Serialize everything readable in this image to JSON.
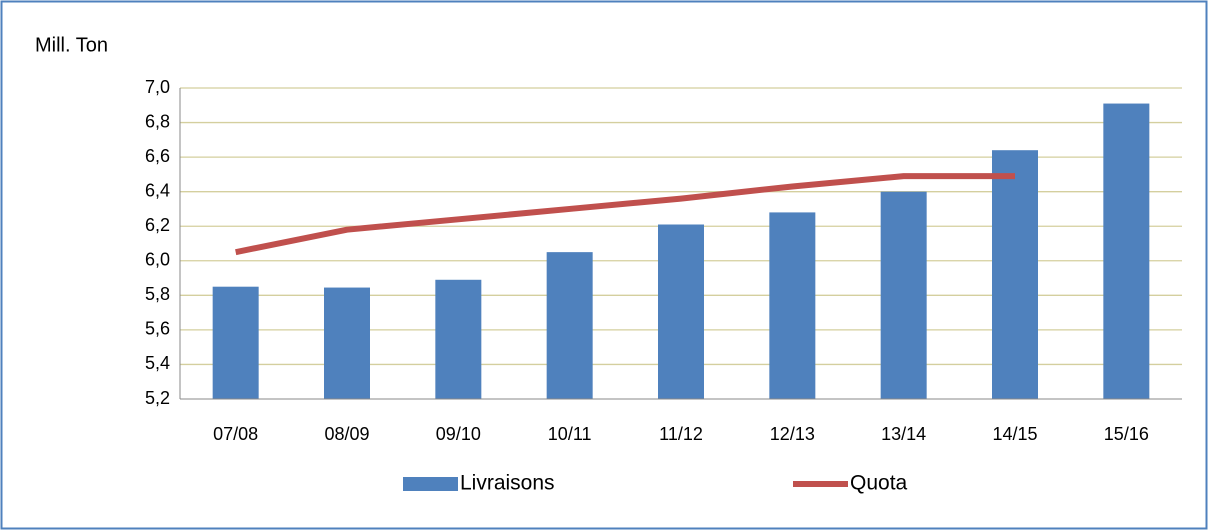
{
  "chart_data": {
    "type": "bar",
    "y_label": "Mill. Ton",
    "categories": [
      "07/08",
      "08/09",
      "09/10",
      "10/11",
      "11/12",
      "12/13",
      "13/14",
      "14/15",
      "15/16"
    ],
    "series": [
      {
        "name": "Livraisons",
        "type": "bar",
        "color": "#4f81bd",
        "values": [
          5.85,
          5.845,
          5.89,
          6.05,
          6.21,
          6.28,
          6.4,
          6.64,
          6.91
        ]
      },
      {
        "name": "Quota",
        "type": "line",
        "color": "#c0504d",
        "values": [
          6.05,
          6.18,
          6.24,
          6.3,
          6.36,
          6.43,
          6.49,
          6.49,
          null
        ]
      }
    ],
    "ylim": [
      5.2,
      7.0
    ],
    "yticks": [
      {
        "value": 5.2,
        "label": "5,2"
      },
      {
        "value": 5.4,
        "label": "5,4"
      },
      {
        "value": 5.6,
        "label": "5,6"
      },
      {
        "value": 5.8,
        "label": "5,8"
      },
      {
        "value": 6.0,
        "label": "6,0"
      },
      {
        "value": 6.2,
        "label": "6,2"
      },
      {
        "value": 6.4,
        "label": "6,4"
      },
      {
        "value": 6.6,
        "label": "6,6"
      },
      {
        "value": 6.8,
        "label": "6,8"
      },
      {
        "value": 7.0,
        "label": "7,0"
      }
    ],
    "grid": true,
    "legend": "bottom"
  }
}
